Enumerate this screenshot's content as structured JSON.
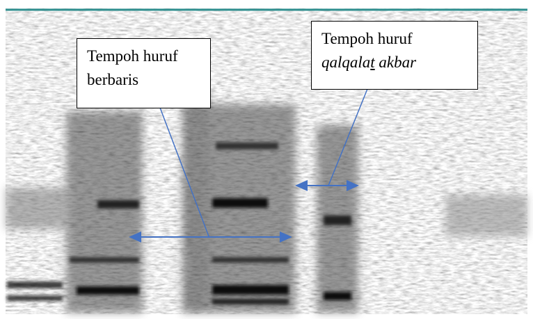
{
  "annotations": [
    {
      "lines": [
        "Tempoh huruf",
        "berbaris"
      ]
    },
    {
      "line1": "Tempoh huruf",
      "line2": {
        "parts": [
          "qalqala",
          "t",
          " akbar"
        ]
      }
    }
  ]
}
